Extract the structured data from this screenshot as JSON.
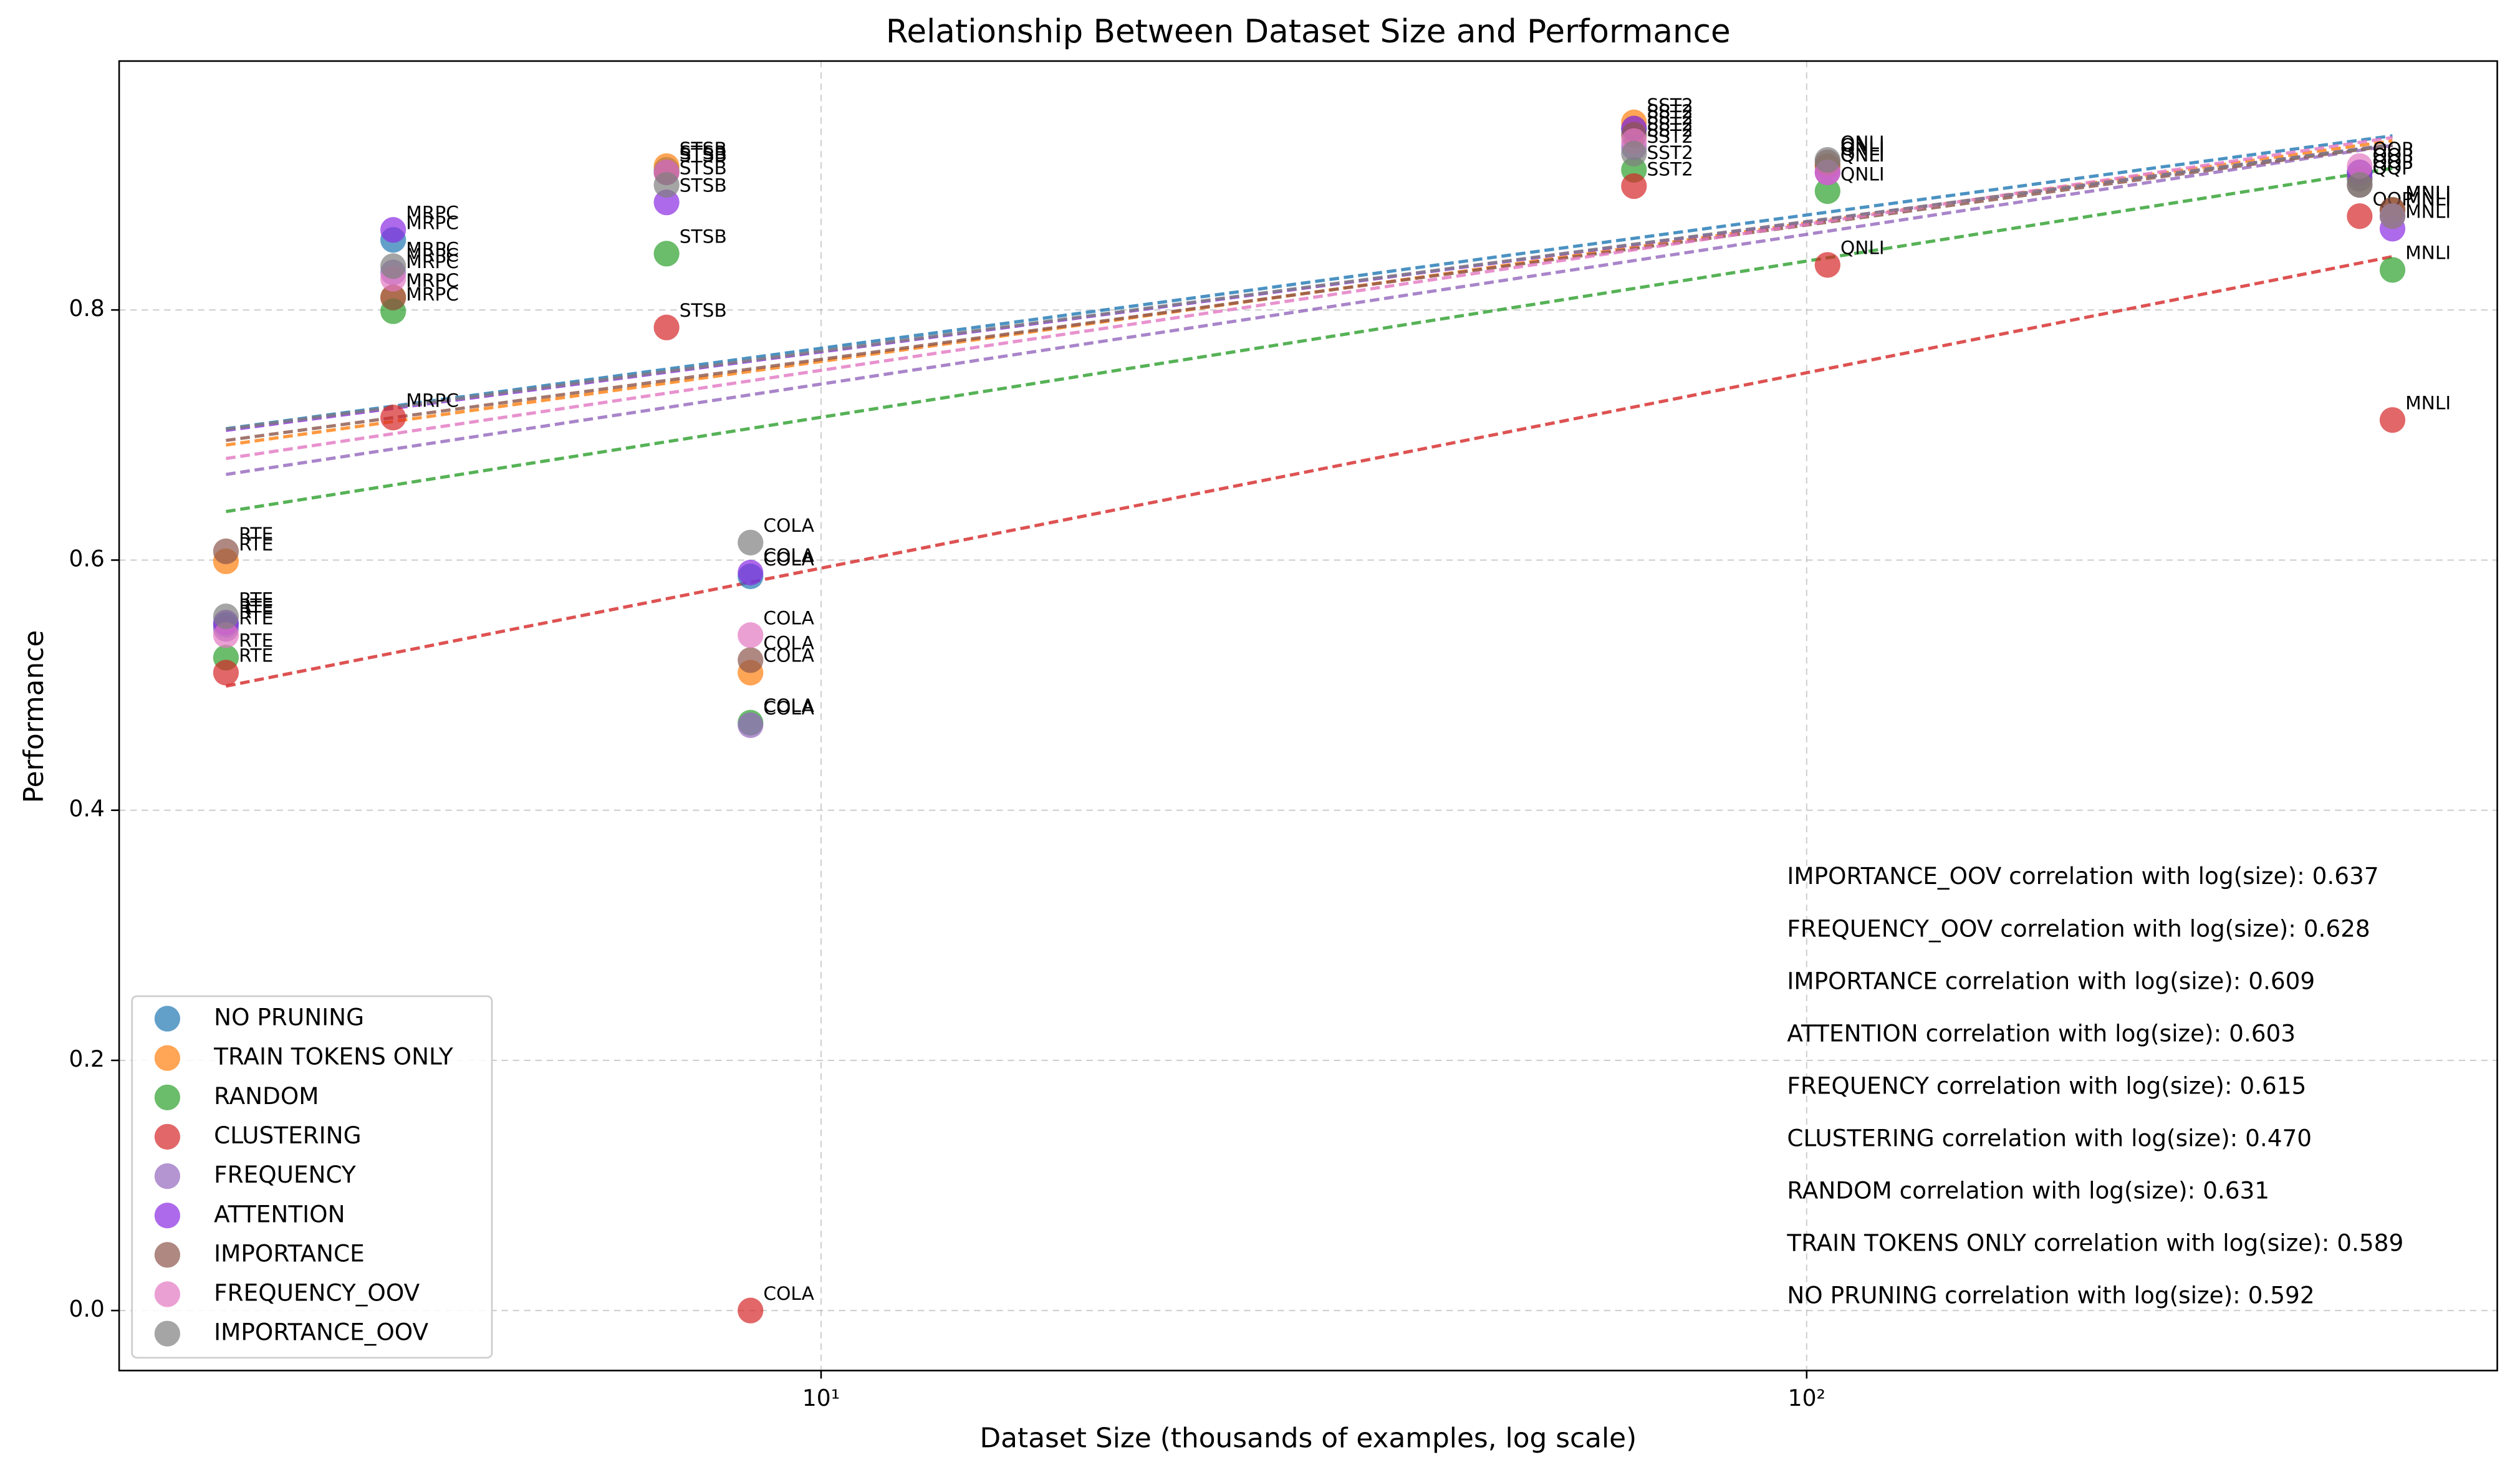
{
  "chart_data": {
    "type": "scatter",
    "title": "Relationship Between Dataset Size and Performance",
    "x_label": "Dataset Size (thousands of examples, log scale)",
    "y_label": "Performance",
    "xscale": "log",
    "grid": true,
    "legend": "lower left",
    "trend_lines": true,
    "xlim": [
      1.94,
      502
    ],
    "ylim": [
      -0.048,
      0.999
    ],
    "xticks": [
      {
        "value": 10,
        "label": "10¹"
      },
      {
        "value": 100,
        "label": "10²"
      }
    ],
    "yticks": [
      {
        "value": 0,
        "label": "0.0"
      },
      0.2,
      0.4,
      0.6,
      0.8
    ],
    "categories": [
      "RTE",
      "MRPC",
      "STSB",
      "COLA",
      "SST2",
      "QNLI",
      "QQP",
      "MNLI"
    ],
    "x": [
      2.49,
      3.68,
      6.97,
      8.48,
      66.8,
      105,
      364,
      393
    ],
    "series": [
      {
        "name": "NO PRUNING",
        "color": "#1f77b4",
        "values": [
          0.548,
          0.856,
          0.912,
          0.587,
          0.945,
          0.915,
          0.91,
          0.88
        ],
        "annotation": "NO PRUNING correlation with log(size): 0.592"
      },
      {
        "name": "TRAIN TOKENS ONLY",
        "color": "#ff7f0e",
        "values": [
          0.599,
          0.81,
          0.915,
          0.51,
          0.95,
          0.915,
          0.905,
          0.88
        ],
        "annotation": "TRAIN TOKENS ONLY correlation with log(size): 0.589"
      },
      {
        "name": "RANDOM",
        "color": "#2ca02c",
        "values": [
          0.522,
          0.799,
          0.845,
          0.47,
          0.912,
          0.895,
          0.905,
          0.832
        ],
        "annotation": "RANDOM correlation with log(size): 0.631"
      },
      {
        "name": "CLUSTERING",
        "color": "#d62728",
        "values": [
          0.51,
          0.714,
          0.786,
          0.0,
          0.899,
          0.836,
          0.875,
          0.712
        ],
        "annotation": "CLUSTERING correlation with log(size): 0.470"
      },
      {
        "name": "FREQUENCY",
        "color": "#9467bd",
        "values": [
          0.545,
          0.83,
          0.91,
          0.468,
          0.93,
          0.91,
          0.905,
          0.875
        ],
        "annotation": "FREQUENCY correlation with log(size): 0.615"
      },
      {
        "name": "ATTENTION",
        "color": "#8a2be2",
        "values": [
          0.55,
          0.864,
          0.886,
          0.59,
          0.945,
          0.91,
          0.91,
          0.865
        ],
        "annotation": "ATTENTION correlation with log(size): 0.603"
      },
      {
        "name": "IMPORTANCE",
        "color": "#8c564b",
        "values": [
          0.607,
          0.81,
          0.91,
          0.52,
          0.94,
          0.918,
          0.9,
          0.88
        ],
        "annotation": "IMPORTANCE correlation with log(size): 0.609"
      },
      {
        "name": "FREQUENCY_OOV",
        "color": "#e377c2",
        "values": [
          0.54,
          0.825,
          0.91,
          0.54,
          0.935,
          0.91,
          0.915,
          0.875
        ],
        "annotation": "FREQUENCY_OOV correlation with log(size): 0.628"
      },
      {
        "name": "IMPORTANCE_OOV",
        "color": "#7f7f7f",
        "values": [
          0.555,
          0.835,
          0.9,
          0.614,
          0.925,
          0.92,
          0.9,
          0.875
        ],
        "annotation": "IMPORTANCE_OOV correlation with log(size): 0.637"
      }
    ]
  }
}
